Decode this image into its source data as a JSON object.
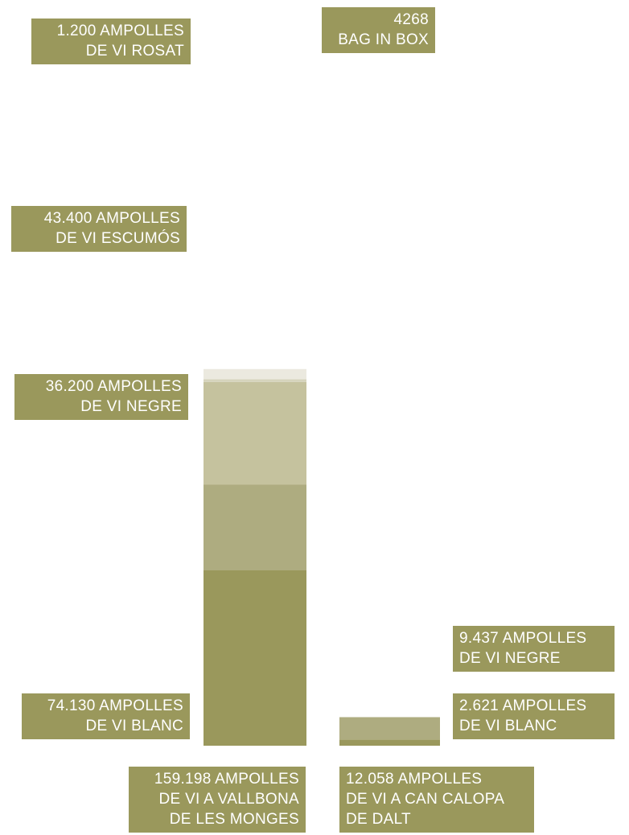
{
  "chart_data": {
    "type": "bar",
    "stacked": true,
    "categories": [
      [
        "159.198 AMPOLLES",
        "DE VI A VALLBONA",
        "DE LES MONGES"
      ],
      [
        "12.058 AMPOLLES",
        "DE VI A CAN CALOPA",
        "DE DALT"
      ]
    ],
    "series": [
      {
        "color": "#9a985c",
        "values": [
          74130,
          2621
        ],
        "labels": [
          [
            "74.130 AMPOLLES",
            "DE VI BLANC"
          ],
          [
            "2.621 AMPOLLES",
            "DE VI BLANC"
          ]
        ]
      },
      {
        "color": "#aeac80",
        "values": [
          36200,
          9437
        ],
        "labels": [
          [
            "36.200 AMPOLLES",
            "DE VI NEGRE"
          ],
          [
            "9.437 AMPOLLES",
            "DE VI NEGRE"
          ]
        ]
      },
      {
        "color": "#c5c29e",
        "values": [
          43400,
          0
        ],
        "labels": [
          [
            "43.400 AMPOLLES",
            "DE VI ESCUMÓS"
          ],
          []
        ]
      },
      {
        "color": "#d6d4bc",
        "values": [
          1200,
          0
        ],
        "labels": [
          [
            "1.200 AMPOLLES",
            "DE VI ROSAT"
          ],
          []
        ]
      },
      {
        "color": "#ebe9df",
        "values": [
          4268,
          0
        ],
        "labels": [
          [
            "4268",
            "BAG IN BOX"
          ],
          []
        ]
      }
    ],
    "label_color": "#9a985c",
    "background": "#ffffff"
  }
}
